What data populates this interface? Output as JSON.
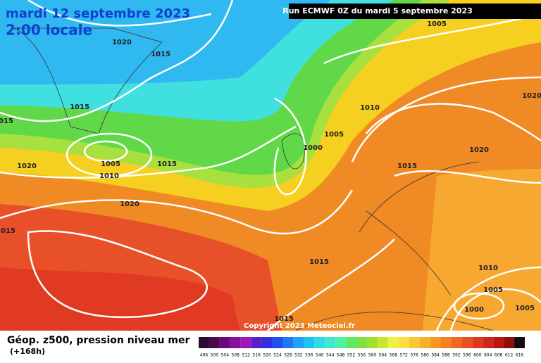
{
  "header": {
    "date": "mardi 12 septembre 2023",
    "time": "2:00 locale",
    "run": "Run ECMWF 0Z du mardi 5 septembre 2023"
  },
  "isobar_labels": [
    "1020",
    "1015",
    "1015",
    "1015",
    "1005",
    "1010",
    "1020",
    "1015",
    "1020",
    "1015",
    "1005",
    "1010",
    "1005",
    "1000",
    "1015",
    "1020",
    "1020",
    "1015",
    "1015",
    "1010",
    "1005",
    "1000",
    "1005"
  ],
  "copyright": "Copyright 2023 Meteociel.fr",
  "footer": {
    "title": "Géop. z500, pression niveau mer",
    "lead": "(+168h)"
  },
  "scale": {
    "labels": [
      496,
      500,
      504,
      508,
      512,
      516,
      520,
      524,
      528,
      532,
      536,
      540,
      544,
      548,
      552,
      556,
      560,
      564,
      568,
      572,
      576,
      580,
      584,
      588,
      592,
      596,
      600,
      604,
      608,
      612,
      616
    ],
    "colors": [
      "#2a0a30",
      "#4a0a50",
      "#6a0a78",
      "#8a10a0",
      "#a018b8",
      "#5a20c8",
      "#3030e0",
      "#2050f0",
      "#2078f8",
      "#20a0f8",
      "#20c0f0",
      "#30d8e8",
      "#40e8d0",
      "#50f0a0",
      "#60e860",
      "#80e040",
      "#a0e030",
      "#c8e830",
      "#f0f040",
      "#f8e040",
      "#f8c830",
      "#f8b028",
      "#f89820",
      "#f08020",
      "#f06820",
      "#e85020",
      "#e03820",
      "#d02818",
      "#b81810",
      "#901008",
      "#101010"
    ]
  }
}
